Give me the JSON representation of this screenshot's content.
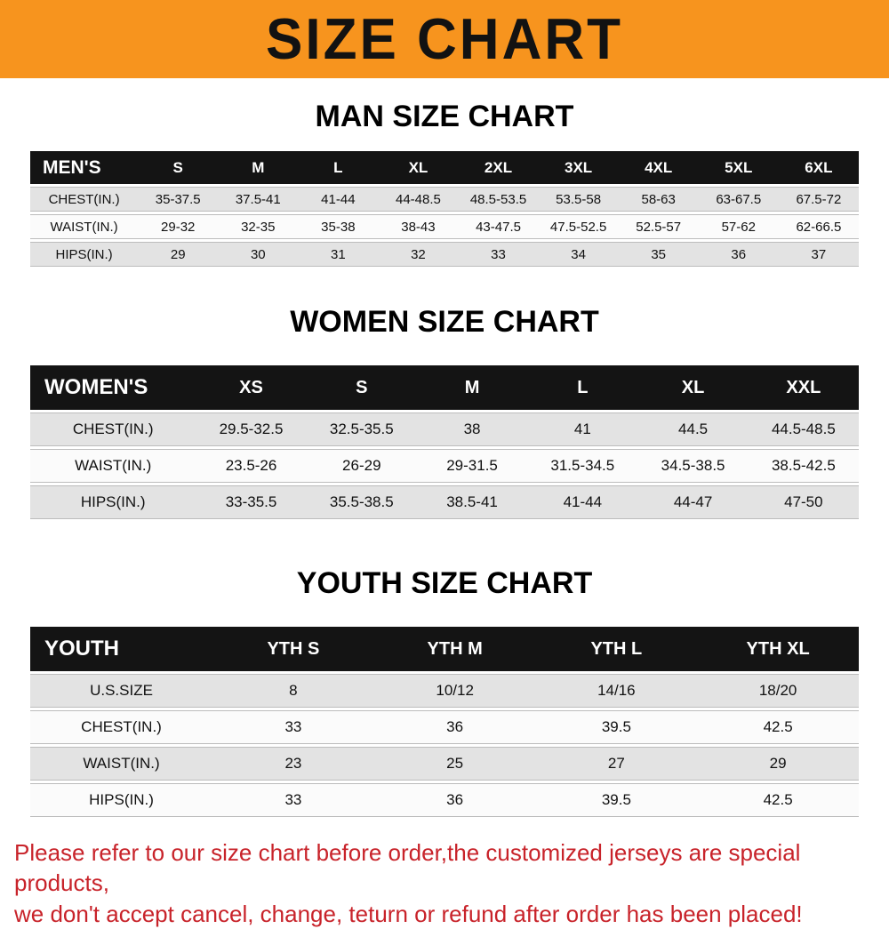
{
  "banner": {
    "title": "SIZE CHART",
    "bg_color": "#f7941e"
  },
  "sections": [
    {
      "heading": "MAN SIZE CHART",
      "table": {
        "name": "mens-size-table",
        "header_label": "MEN'S",
        "columns": [
          "S",
          "M",
          "L",
          "XL",
          "2XL",
          "3XL",
          "4XL",
          "5XL",
          "6XL"
        ],
        "rows": [
          {
            "label": "CHEST(IN.)",
            "values": [
              "35-37.5",
              "37.5-41",
              "41-44",
              "44-48.5",
              "48.5-53.5",
              "53.5-58",
              "58-63",
              "63-67.5",
              "67.5-72"
            ]
          },
          {
            "label": "WAIST(IN.)",
            "values": [
              "29-32",
              "32-35",
              "35-38",
              "38-43",
              "43-47.5",
              "47.5-52.5",
              "52.5-57",
              "57-62",
              "62-66.5"
            ]
          },
          {
            "label": "HIPS(IN.)",
            "values": [
              "29",
              "30",
              "31",
              "32",
              "33",
              "34",
              "35",
              "36",
              "37"
            ]
          }
        ]
      }
    },
    {
      "heading": "WOMEN SIZE CHART",
      "table": {
        "name": "womens-size-table",
        "header_label": "WOMEN'S",
        "columns": [
          "XS",
          "S",
          "M",
          "L",
          "XL",
          "XXL"
        ],
        "rows": [
          {
            "label": "CHEST(IN.)",
            "values": [
              "29.5-32.5",
              "32.5-35.5",
              "38",
              "41",
              "44.5",
              "44.5-48.5"
            ]
          },
          {
            "label": "WAIST(IN.)",
            "values": [
              "23.5-26",
              "26-29",
              "29-31.5",
              "31.5-34.5",
              "34.5-38.5",
              "38.5-42.5"
            ]
          },
          {
            "label": "HIPS(IN.)",
            "values": [
              "33-35.5",
              "35.5-38.5",
              "38.5-41",
              "41-44",
              "44-47",
              "47-50"
            ]
          }
        ]
      }
    },
    {
      "heading": "YOUTH SIZE CHART",
      "table": {
        "name": "youth-size-table",
        "header_label": "YOUTH",
        "columns": [
          "YTH S",
          "YTH M",
          "YTH L",
          "YTH XL"
        ],
        "rows": [
          {
            "label": "U.S.SIZE",
            "values": [
              "8",
              "10/12",
              "14/16",
              "18/20"
            ]
          },
          {
            "label": "CHEST(IN.)",
            "values": [
              "33",
              "36",
              "39.5",
              "42.5"
            ]
          },
          {
            "label": "WAIST(IN.)",
            "values": [
              "23",
              "25",
              "27",
              "29"
            ]
          },
          {
            "label": "HIPS(IN.)",
            "values": [
              "33",
              "36",
              "39.5",
              "42.5"
            ]
          }
        ]
      }
    }
  ],
  "footer": {
    "line1": "Please refer to our size chart before order,the customized jerseys are special products,",
    "line2": "we don't accept cancel, change, teturn or refund after order has been placed!"
  }
}
